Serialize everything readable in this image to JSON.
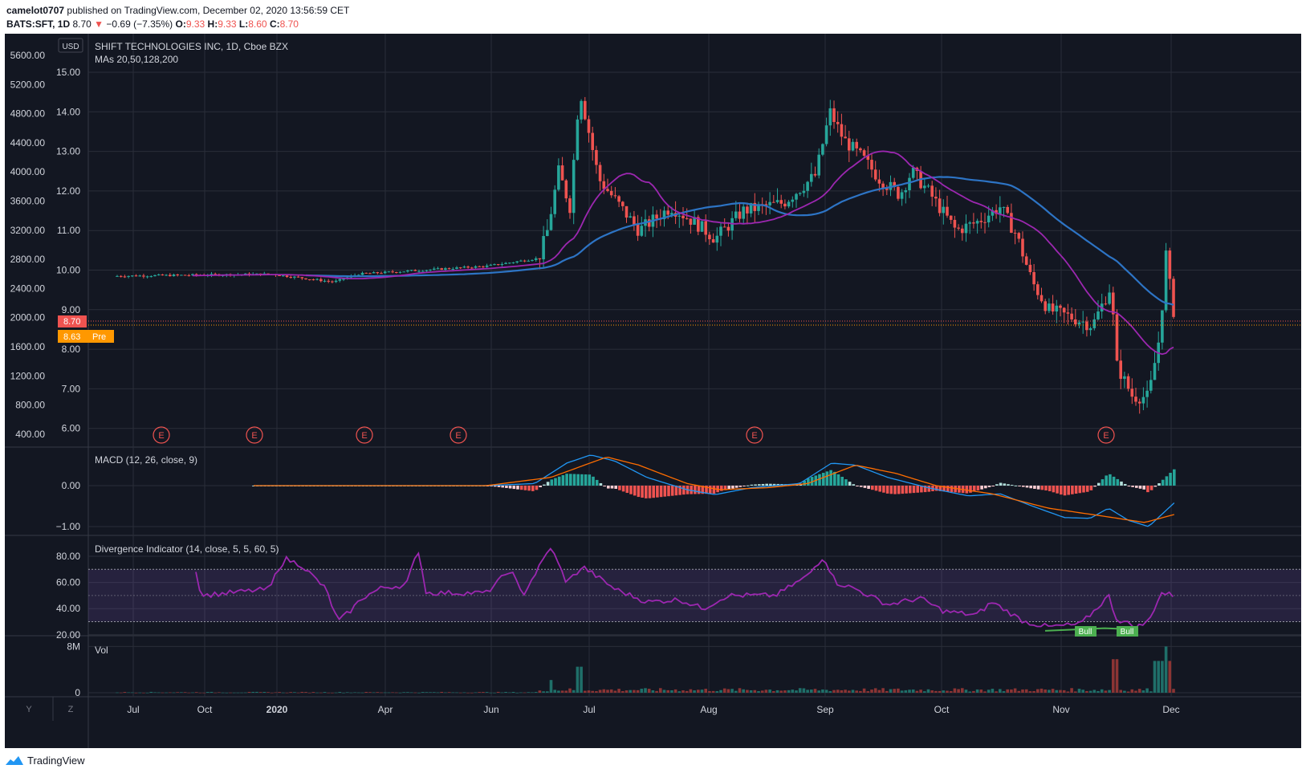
{
  "header": {
    "user": "camelot0707",
    "published_text": "published on TradingView.com, December 02, 2020 13:56:59 CET",
    "symbol": "BATS:SFT, 1D",
    "last": "8.70",
    "change": "−0.69 (−7.35%)",
    "ohlc_o_label": "O:",
    "ohlc_o": "9.33",
    "ohlc_h_label": "H:",
    "ohlc_h": "9.33",
    "ohlc_l_label": "L:",
    "ohlc_l": "8.60",
    "ohlc_c_label": "C:",
    "ohlc_c": "8.70"
  },
  "main_pane": {
    "currency": "USD",
    "title": "SHIFT TECHNOLOGIES INC, 1D, Cboe BZX",
    "ma_label": "MAs 20,50,128,200",
    "price_label": "8.70",
    "pre_price": "8.63",
    "pre_text": "Pre",
    "earnings_marker": "E"
  },
  "macd_pane": {
    "title": "MACD (12, 26, close, 9)"
  },
  "div_pane": {
    "title": "Divergence Indicator (14, close, 5, 5, 60, 5)",
    "bull_label": "Bull"
  },
  "vol_pane": {
    "title": "Vol"
  },
  "toolbar": {
    "y_btn": "Y",
    "z_btn": "Z"
  },
  "footer": {
    "brand": "TradingView"
  },
  "colors": {
    "up": "#26a69a",
    "down": "#ef5350",
    "ma20": "#9c27b0",
    "ma50": "#2d74c5",
    "bg": "#131722"
  },
  "chart_data": [
    {
      "type": "candlestick",
      "title": "SHIFT TECHNOLOGIES INC, 1D, Cboe BZX",
      "x_ticks": [
        "Jul",
        "Oct",
        "2020",
        "Apr",
        "Jun",
        "Jul",
        "Aug",
        "Sep",
        "Oct",
        "Nov",
        "Dec"
      ],
      "y_ticks_right": [
        "15.00",
        "14.00",
        "13.00",
        "12.00",
        "11.00",
        "10.00",
        "9.00",
        "8.00",
        "7.00",
        "6.00"
      ],
      "y_ticks_left": [
        "5600.00",
        "5200.00",
        "4800.00",
        "4400.00",
        "4000.00",
        "3600.00",
        "3200.00",
        "2800.00",
        "2400.00",
        "2000.00",
        "1600.00",
        "1200.00",
        "800.00",
        "400.00"
      ],
      "ylim": [
        5.7,
        15.8
      ],
      "last_price": 8.7,
      "pre_market_price": 8.63,
      "earnings_count": 6,
      "phases": [
        {
          "name": "pre-merger (2019 to early Jun 2020)",
          "price": 9.8
        },
        {
          "name": "late Jun peak",
          "high": 14.85
        },
        {
          "name": "mid Aug low",
          "low": 10.6
        },
        {
          "name": "early Sep peak",
          "high": 14.45
        },
        {
          "name": "mid Nov low",
          "low": 6.6
        },
        {
          "name": "late Nov rally high",
          "high": 11.5
        },
        {
          "name": "Dec 1 close",
          "close": 8.7
        }
      ],
      "moving_averages": [
        {
          "period": 20,
          "color": "#9c27b0",
          "last": 8.2
        },
        {
          "period": 50,
          "color": "#2d74c5",
          "last": 9.82
        }
      ]
    },
    {
      "type": "line",
      "title": "MACD (12, 26, close, 9)",
      "y_ticks": [
        "0.00",
        "−1.00"
      ],
      "notable": {
        "peak_jul": 0.75,
        "low_nov": -1.0,
        "last_macd": -0.4,
        "last_signal": -0.7
      }
    },
    {
      "type": "line",
      "title": "Divergence Indicator (14, close, 5, 5, 60, 5)",
      "y_ticks": [
        "80.00",
        "60.00",
        "40.00",
        "20.00"
      ],
      "bands": [
        30,
        70
      ],
      "notable": {
        "max_jun": 87,
        "min_nov": 25,
        "last": 50
      },
      "labels": [
        "Bull",
        "Bull"
      ]
    },
    {
      "type": "bar",
      "title": "Vol",
      "y_ticks": [
        "8M",
        "0"
      ],
      "notable": {
        "max": "8M (Dec)"
      }
    }
  ]
}
